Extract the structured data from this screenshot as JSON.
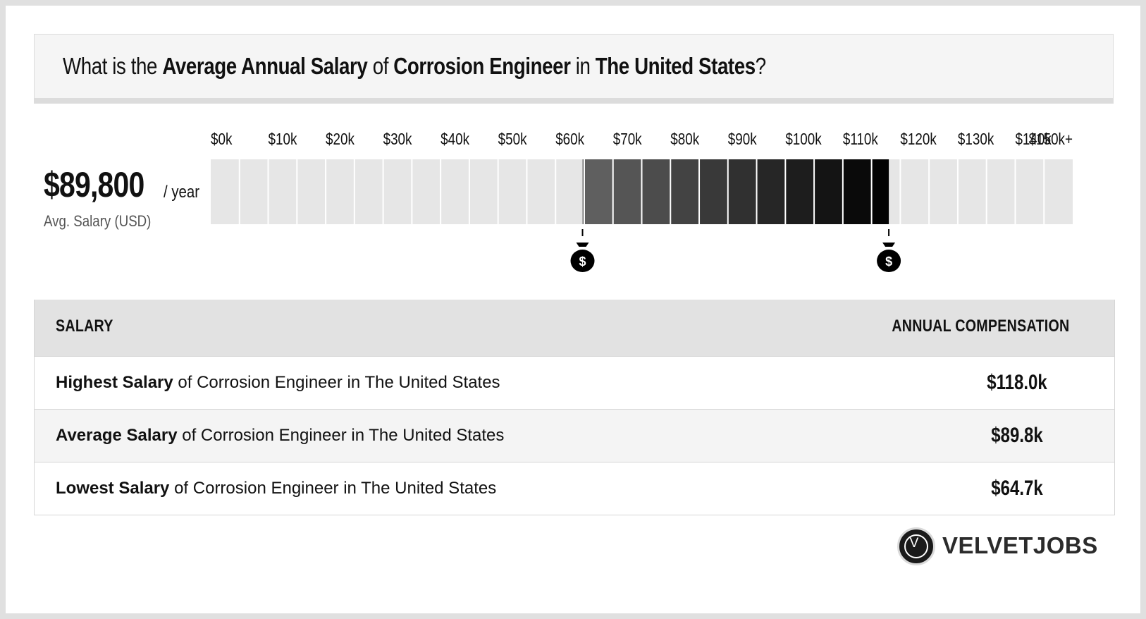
{
  "title": {
    "prefix": "What is the ",
    "metric": "Average Annual Salary",
    "of": " of ",
    "job": "Corrosion Engineer",
    "in": " in ",
    "location": "The United States",
    "suffix": "?"
  },
  "average": {
    "value": "$89,800",
    "unit": "/ year",
    "label": "Avg. Salary (USD)"
  },
  "chart_data": {
    "type": "bar",
    "title": "",
    "xlabel": "",
    "ylabel": "",
    "tick_labels": [
      "$0k",
      "$10k",
      "$20k",
      "$30k",
      "$40k",
      "$50k",
      "$60k",
      "$70k",
      "$80k",
      "$90k",
      "$100k",
      "$110k",
      "$120k",
      "$130k",
      "$140k",
      "$150k+"
    ],
    "xlim": [
      0,
      150000
    ],
    "range": {
      "low": 64700,
      "high": 118000
    },
    "markers": [
      {
        "value": 64700,
        "icon": "money-bag-icon"
      },
      {
        "value": 118000,
        "icon": "money-bag-icon"
      }
    ],
    "colors": {
      "empty": "#e6e6e6",
      "range_start": "#646464",
      "range_end": "#000000",
      "gap": "#ffffff"
    },
    "grid": false,
    "legend": "none"
  },
  "table": {
    "headers": {
      "salary": "SALARY",
      "compensation": "ANNUAL COMPENSATION"
    },
    "rows": [
      {
        "bold": "Highest Salary",
        "rest": " of Corrosion Engineer in The United States",
        "value": "$118.0k"
      },
      {
        "bold": "Average Salary",
        "rest": " of Corrosion Engineer in The United States",
        "value": "$89.8k"
      },
      {
        "bold": "Lowest Salary",
        "rest": " of Corrosion Engineer in The United States",
        "value": "$64.7k"
      }
    ]
  },
  "brand": {
    "initial": "V",
    "name": "VELVETJOBS"
  }
}
